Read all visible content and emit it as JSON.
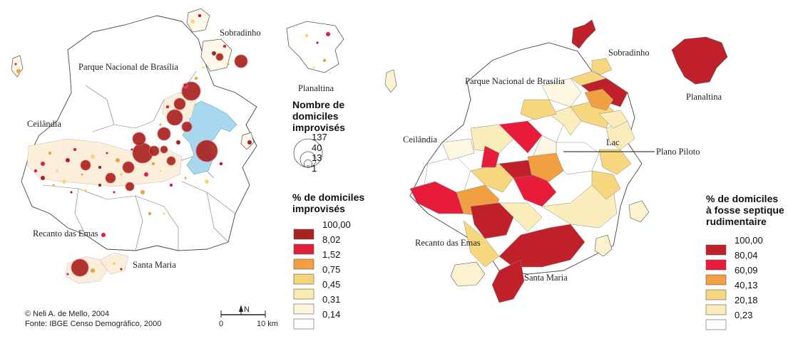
{
  "left_map": {
    "places": {
      "parque": "Parque Nacional de Brasília",
      "sobradinho": "Sobradinho",
      "planaltina": "Planaltina",
      "ceilandia": "Ceilândia",
      "recanto": "Recanto das Emas",
      "santa_maria": "Santa Maria"
    },
    "size_legend": {
      "title_lines": [
        "Nombre de",
        "domiciles",
        "improvisés"
      ],
      "values": [
        "137",
        "40",
        "13",
        "1"
      ]
    },
    "color_legend": {
      "title_lines": [
        "% de domiciles",
        "improvisés"
      ],
      "classes": [
        {
          "value": "100,00",
          "color": "#a8231f"
        },
        {
          "value": "8,02",
          "color": "#e0203a"
        },
        {
          "value": "1,52",
          "color": "#f0a040"
        },
        {
          "value": "0,75",
          "color": "#f6d57a"
        },
        {
          "value": "0,45",
          "color": "#faebb0"
        },
        {
          "value": "0,31",
          "color": "#fdf6dc"
        },
        {
          "value": "0,14",
          "color": ""
        }
      ]
    },
    "credits": [
      "© Neli A. de Mello, 2004",
      "Fonte: IBGE Censo Demográfico, 2000"
    ],
    "scale": {
      "zero": "0",
      "end": "10 km",
      "north": "N"
    }
  },
  "right_map": {
    "places": {
      "sobradinho": "Sobradinho",
      "planaltina": "Planaltina",
      "parque": "Parque Nacional de Brasília",
      "ceilandia": "Ceilândia",
      "lac": "Lac",
      "plano": "Plano Piloto",
      "recanto": "Recanto das Emas",
      "santa_maria": "Santa Maria"
    },
    "color_legend": {
      "title_lines": [
        "% de domiciles",
        "à fosse septique",
        "rudimentaire"
      ],
      "classes": [
        {
          "value": "100,00",
          "color": "#c0202a"
        },
        {
          "value": "80,04",
          "color": "#e81c3a"
        },
        {
          "value": "60,09",
          "color": "#f0a040"
        },
        {
          "value": "40,13",
          "color": "#f7d77e"
        },
        {
          "value": "20,18",
          "color": "#fbedbb"
        },
        {
          "value": "0,23",
          "color": ""
        }
      ]
    }
  }
}
